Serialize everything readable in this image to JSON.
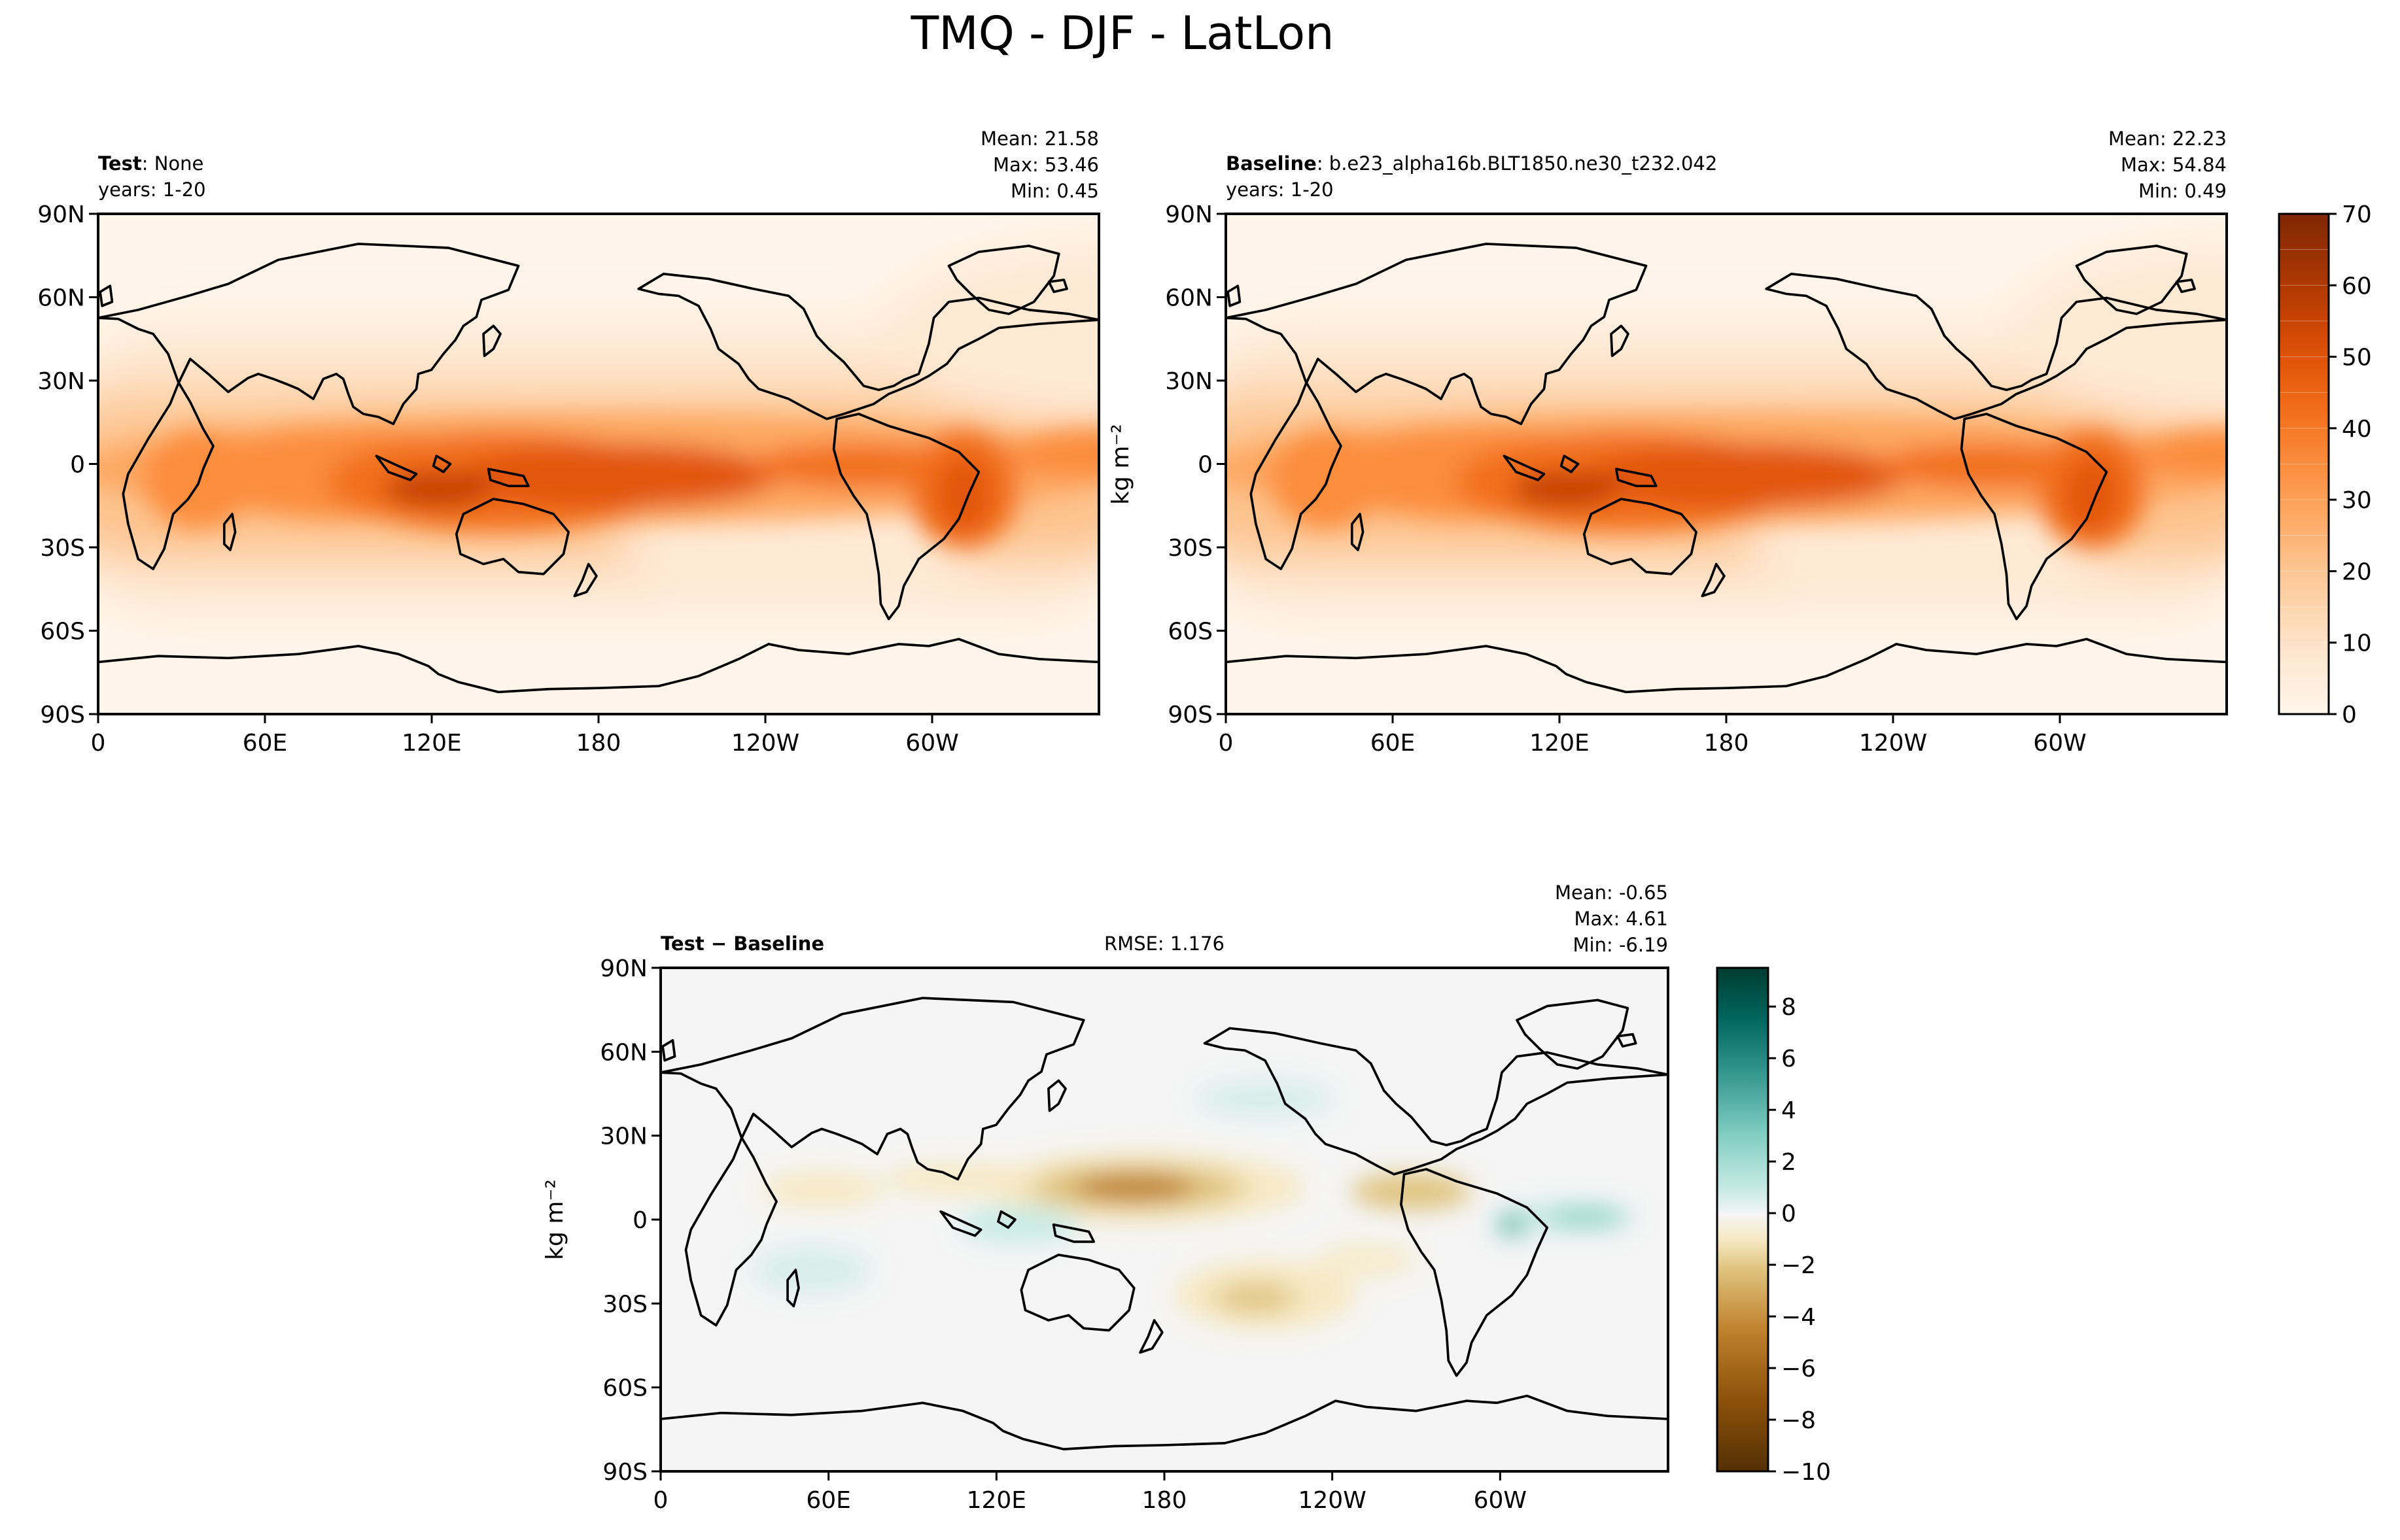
{
  "title": "TMQ - DJF - LatLon",
  "lat_ticks": [
    "90N",
    "60N",
    "30N",
    "0",
    "30S",
    "60S",
    "90S"
  ],
  "lon_ticks": [
    "0",
    "60E",
    "120E",
    "180",
    "120W",
    "60W"
  ],
  "units": "kg m⁻²",
  "panels": {
    "test": {
      "label_bold": "Test",
      "label_rest": ": None",
      "years": "years: 1-20",
      "mean": "Mean: 21.58",
      "max": "Max: 53.46",
      "min": "Min:  0.45"
    },
    "baseline": {
      "label_bold": "Baseline",
      "label_rest": ": b.e23_alpha16b.BLT1850.ne30_t232.042",
      "years": "years: 1-20",
      "mean": "Mean: 22.23",
      "max": "Max: 54.84",
      "min": "Min:  0.49"
    },
    "diff": {
      "label_bold": "Test − Baseline",
      "rmse": "RMSE: 1.176",
      "mean": "Mean: -0.65",
      "max": "Max:  4.61",
      "min": "Min: -6.19"
    }
  },
  "colorbars": {
    "main": {
      "ticks": [
        "0",
        "10",
        "20",
        "30",
        "40",
        "50",
        "60",
        "70"
      ],
      "range": [
        0,
        70
      ],
      "step": 5
    },
    "diff": {
      "ticks": [
        "8",
        "6",
        "4",
        "2",
        "0",
        "−2",
        "−4",
        "−6",
        "−8",
        "−10"
      ],
      "range": [
        -10,
        9.5
      ]
    }
  },
  "colors": {
    "oranges": [
      "#fff5eb",
      "#fee9d4",
      "#fdd8b3",
      "#fdc28c",
      "#fda762",
      "#fb8d3d",
      "#f2701d",
      "#e25609",
      "#c44103",
      "#9f3303",
      "#7f2704"
    ],
    "brbg_neg": [
      "#543005",
      "#8c510a",
      "#bf812d",
      "#dfc27d",
      "#f6e8c3"
    ],
    "brbg_neutral": "#f5f5f5",
    "brbg_pos": [
      "#c7eae5",
      "#80cdc1",
      "#35978f",
      "#01665e",
      "#003c30"
    ]
  },
  "chart_data": [
    {
      "type": "heatmap",
      "name": "Test",
      "variable": "TMQ",
      "season": "DJF",
      "xlim": [
        0,
        360
      ],
      "ylim": [
        -90,
        90
      ],
      "vlim": [
        0,
        70
      ],
      "stats": {
        "mean": 21.58,
        "max": 53.46,
        "min": 0.45
      }
    },
    {
      "type": "heatmap",
      "name": "Baseline",
      "variable": "TMQ",
      "season": "DJF",
      "xlim": [
        0,
        360
      ],
      "ylim": [
        -90,
        90
      ],
      "vlim": [
        0,
        70
      ],
      "stats": {
        "mean": 22.23,
        "max": 54.84,
        "min": 0.49
      }
    },
    {
      "type": "heatmap",
      "name": "Test − Baseline",
      "variable": "TMQ",
      "season": "DJF",
      "xlim": [
        0,
        360
      ],
      "ylim": [
        -90,
        90
      ],
      "vlim": [
        -10,
        9.5
      ],
      "stats": {
        "mean": -0.65,
        "max": 4.61,
        "min": -6.19,
        "rmse": 1.176
      }
    }
  ]
}
